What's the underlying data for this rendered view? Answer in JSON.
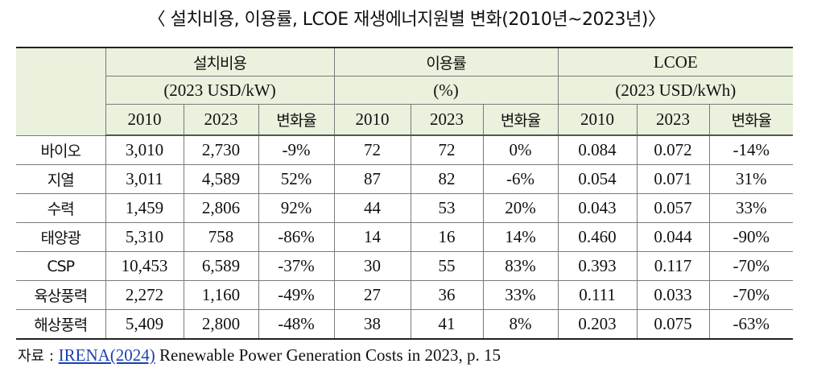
{
  "title": "〈 설치비용, 이용률, LCOE 재생에너지원별 변화(2010년~2023년)〉",
  "table": {
    "groups": [
      {
        "name": "설치비용",
        "unit": "(2023 USD/kW)"
      },
      {
        "name": "이용률",
        "unit": "(%)"
      },
      {
        "name": "LCOE",
        "unit": "(2023 USD/kWh)"
      }
    ],
    "subheaders": [
      "2010",
      "2023",
      "변화율"
    ],
    "rows": [
      {
        "label": "바이오",
        "cost": [
          "3,010",
          "2,730",
          "-9%"
        ],
        "util": [
          "72",
          "72",
          "0%"
        ],
        "lcoe": [
          "0.084",
          "0.072",
          "-14%"
        ]
      },
      {
        "label": "지열",
        "cost": [
          "3,011",
          "4,589",
          "52%"
        ],
        "util": [
          "87",
          "82",
          "-6%"
        ],
        "lcoe": [
          "0.054",
          "0.071",
          "31%"
        ]
      },
      {
        "label": "수력",
        "cost": [
          "1,459",
          "2,806",
          "92%"
        ],
        "util": [
          "44",
          "53",
          "20%"
        ],
        "lcoe": [
          "0.043",
          "0.057",
          "33%"
        ]
      },
      {
        "label": "태양광",
        "cost": [
          "5,310",
          "758",
          "-86%"
        ],
        "util": [
          "14",
          "16",
          "14%"
        ],
        "lcoe": [
          "0.460",
          "0.044",
          "-90%"
        ]
      },
      {
        "label": "CSP",
        "cost": [
          "10,453",
          "6,589",
          "-37%"
        ],
        "util": [
          "30",
          "55",
          "83%"
        ],
        "lcoe": [
          "0.393",
          "0.117",
          "-70%"
        ]
      },
      {
        "label": "육상풍력",
        "cost": [
          "2,272",
          "1,160",
          "-49%"
        ],
        "util": [
          "27",
          "36",
          "33%"
        ],
        "lcoe": [
          "0.111",
          "0.033",
          "-70%"
        ]
      },
      {
        "label": "해상풍력",
        "cost": [
          "5,409",
          "2,800",
          "-48%"
        ],
        "util": [
          "38",
          "41",
          "8%"
        ],
        "lcoe": [
          "0.203",
          "0.075",
          "-63%"
        ]
      }
    ]
  },
  "source": {
    "label": "자료 : ",
    "link_text": "IRENA(2024)",
    "rest": " Renewable Power Generation Costs in 2023, p. 15"
  }
}
